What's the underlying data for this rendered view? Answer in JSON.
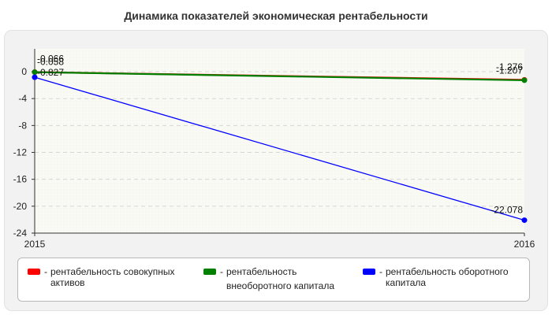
{
  "title": "Динамика показателей экономическая рентабельности",
  "chart_data": {
    "type": "line",
    "title": "Динамика показателей экономическая рентабельности",
    "x": [
      "2015",
      "2016"
    ],
    "ylim": [
      -24,
      0
    ],
    "yticks": [
      0,
      -4,
      -8,
      -12,
      -16,
      -20,
      -24
    ],
    "grid": true,
    "legend_position": "bottom",
    "series": [
      {
        "name": "рентабельность совокупных активов",
        "color": "#ff0000",
        "values": [
          -0.058,
          -1.207
        ],
        "labels": [
          "-0.058",
          "-1.207"
        ]
      },
      {
        "name": "рентабельность внеоборотного капитала",
        "color": "#008000",
        "values": [
          -0.066,
          -1.276
        ],
        "labels": [
          "-0.066",
          "-1.276"
        ]
      },
      {
        "name": "рентабельность оборотного капитала",
        "color": "#0000ff",
        "values": [
          -0.827,
          -22.078
        ],
        "labels": [
          "-0.827",
          "-22.078"
        ]
      }
    ]
  },
  "legend": {
    "prefix": "-",
    "items": [
      {
        "lines": [
          "рентабельность совокупных",
          "активов"
        ]
      },
      {
        "lines": [
          "рентабельность",
          "внеоборотного капитала"
        ]
      },
      {
        "lines": [
          "рентабельность оборотного",
          "капитала"
        ]
      }
    ]
  }
}
